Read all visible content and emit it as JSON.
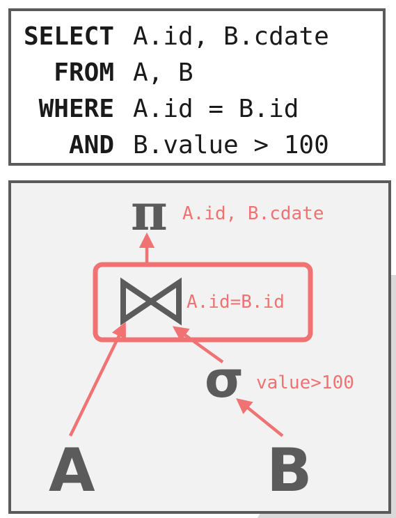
{
  "sql": {
    "lines": [
      {
        "keyword": "SELECT",
        "text": "A.id, B.cdate"
      },
      {
        "keyword": "FROM",
        "text": "A, B"
      },
      {
        "keyword": "WHERE",
        "text": "A.id = B.id"
      },
      {
        "keyword": "AND",
        "text": "B.value > 100"
      }
    ]
  },
  "plan": {
    "projection": {
      "symbol": "π",
      "label": "A.id, B.cdate"
    },
    "join": {
      "symbol": "⋈",
      "label": "A.id=B.id"
    },
    "selection": {
      "symbol": "σ",
      "label": "value>100"
    },
    "tables": {
      "left": "A",
      "right": "B"
    }
  },
  "colors": {
    "accent": "#f07272",
    "operator": "#5b5b5b",
    "border": "#5b5b5b",
    "panel": "#f2f2f2"
  }
}
